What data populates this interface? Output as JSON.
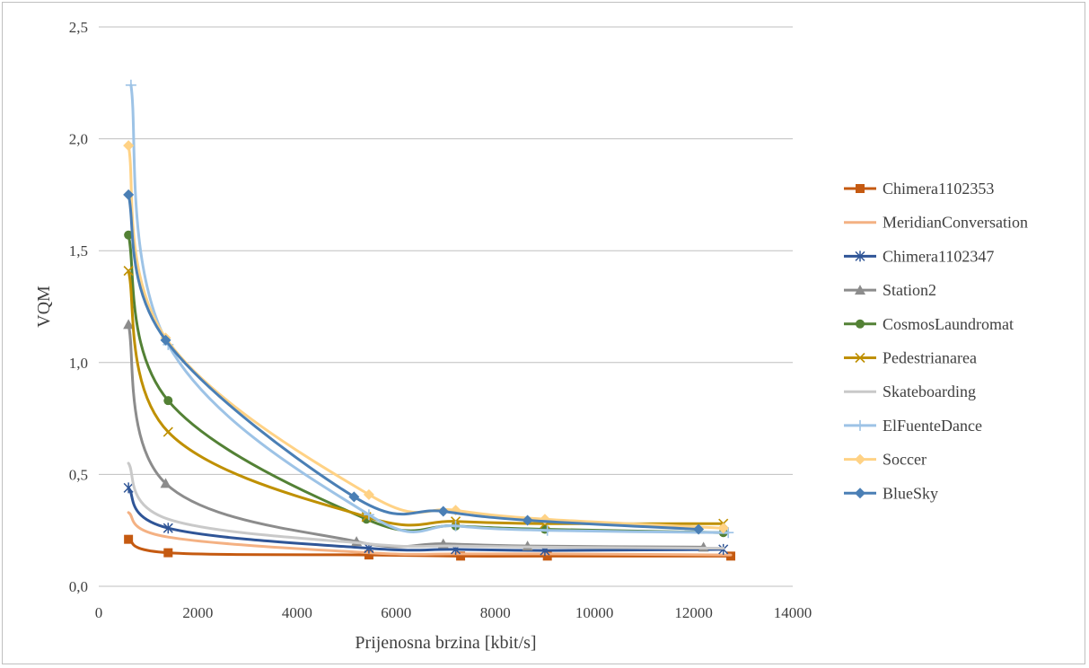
{
  "chart_data": {
    "type": "line",
    "title": "",
    "xlabel": "Prijenosna brzina [kbit/s]",
    "ylabel": "VQM",
    "xlim": [
      0,
      14000
    ],
    "ylim": [
      0,
      2.5
    ],
    "x_ticks": [
      "0",
      "2000",
      "4000",
      "6000",
      "8000",
      "10000",
      "12000",
      "14000"
    ],
    "y_ticks": [
      "0,0",
      "0,5",
      "1,0",
      "1,5",
      "2,0",
      "2,5"
    ],
    "grid": "horizontal",
    "legend_position": "right",
    "series": [
      {
        "name": "Chimera1102353",
        "color": "#c55a11",
        "marker": "square",
        "points": [
          [
            600,
            0.21
          ],
          [
            1400,
            0.15
          ],
          [
            5450,
            0.14
          ],
          [
            7300,
            0.135
          ],
          [
            9050,
            0.135
          ],
          [
            12750,
            0.135
          ]
        ]
      },
      {
        "name": "MeridianConversation",
        "color": "#f4b183",
        "marker": "none",
        "points": [
          [
            600,
            0.33
          ],
          [
            1400,
            0.22
          ],
          [
            5450,
            0.15
          ],
          [
            7300,
            0.145
          ],
          [
            9050,
            0.145
          ],
          [
            12750,
            0.14
          ]
        ]
      },
      {
        "name": "Chimera1102347",
        "color": "#2f5597",
        "marker": "star",
        "points": [
          [
            600,
            0.44
          ],
          [
            1400,
            0.26
          ],
          [
            5450,
            0.17
          ],
          [
            7200,
            0.165
          ],
          [
            9000,
            0.16
          ],
          [
            12600,
            0.165
          ]
        ]
      },
      {
        "name": "Station2",
        "color": "#8c8c8c",
        "marker": "triangle",
        "points": [
          [
            600,
            1.17
          ],
          [
            1350,
            0.46
          ],
          [
            5200,
            0.2
          ],
          [
            6950,
            0.19
          ],
          [
            8650,
            0.18
          ],
          [
            12200,
            0.175
          ]
        ]
      },
      {
        "name": "CosmosLaundromat",
        "color": "#538135",
        "marker": "circle",
        "points": [
          [
            600,
            1.57
          ],
          [
            1400,
            0.83
          ],
          [
            5400,
            0.3
          ],
          [
            7200,
            0.27
          ],
          [
            9000,
            0.255
          ],
          [
            12600,
            0.24
          ]
        ]
      },
      {
        "name": "Pedestrianarea",
        "color": "#bf9000",
        "marker": "x",
        "points": [
          [
            600,
            1.41
          ],
          [
            1400,
            0.69
          ],
          [
            5400,
            0.31
          ],
          [
            7200,
            0.29
          ],
          [
            9000,
            0.28
          ],
          [
            12600,
            0.28
          ]
        ]
      },
      {
        "name": "Skateboarding",
        "color": "#c9c9c9",
        "marker": "none",
        "points": [
          [
            600,
            0.55
          ],
          [
            1400,
            0.3
          ],
          [
            5450,
            0.19
          ],
          [
            7200,
            0.18
          ],
          [
            9000,
            0.175
          ],
          [
            12600,
            0.17
          ]
        ]
      },
      {
        "name": "ElFuenteDance",
        "color": "#9dc3e6",
        "marker": "plus",
        "points": [
          [
            650,
            2.24
          ],
          [
            1400,
            1.08
          ],
          [
            5450,
            0.32
          ],
          [
            7200,
            0.27
          ],
          [
            9050,
            0.25
          ],
          [
            12700,
            0.24
          ]
        ]
      },
      {
        "name": "Soccer",
        "color": "#ffd285",
        "marker": "diamond",
        "points": [
          [
            600,
            1.97
          ],
          [
            1350,
            1.11
          ],
          [
            5450,
            0.41
          ],
          [
            7200,
            0.34
          ],
          [
            9000,
            0.3
          ],
          [
            12600,
            0.26
          ]
        ]
      },
      {
        "name": "BlueSky",
        "color": "#4a7fb5",
        "marker": "diamond",
        "points": [
          [
            600,
            1.75
          ],
          [
            1350,
            1.1
          ],
          [
            5150,
            0.4
          ],
          [
            6950,
            0.335
          ],
          [
            8650,
            0.295
          ],
          [
            12100,
            0.255
          ]
        ]
      }
    ]
  }
}
